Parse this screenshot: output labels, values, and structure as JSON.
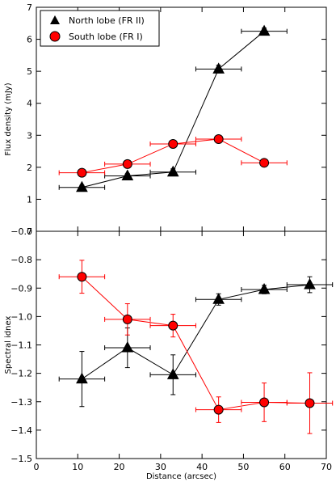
{
  "chart_data": [
    {
      "type": "scatter",
      "ylabel": "Flux density (mJy)",
      "xlim": [
        0,
        70
      ],
      "ylim": [
        0,
        7
      ],
      "yticks": [
        "0",
        "1",
        "2",
        "3",
        "4",
        "5",
        "6",
        "7"
      ],
      "grid": false,
      "legend": "top-left",
      "series": [
        {
          "name": "North lobe (FR II)",
          "marker": "triangle",
          "color": "#000000",
          "x": [
            11,
            22,
            33,
            44,
            55
          ],
          "y": [
            1.37,
            1.73,
            1.85,
            5.07,
            6.25
          ],
          "xerr": [
            5.5,
            5.5,
            5.5,
            5.5,
            5.5
          ],
          "yerr": [
            0.07,
            0.07,
            0.1,
            0.12,
            0.1
          ]
        },
        {
          "name": "South lobe (FR I)",
          "marker": "circle",
          "color": "#ff0000",
          "x": [
            11,
            22,
            33,
            44,
            55
          ],
          "y": [
            1.83,
            2.1,
            2.73,
            2.88,
            2.14
          ],
          "xerr": [
            5.5,
            5.5,
            5.5,
            5.5,
            5.5
          ],
          "yerr": [
            0.05,
            0.05,
            0.05,
            0.05,
            0.05
          ]
        }
      ]
    },
    {
      "type": "scatter",
      "xlabel": "Distance (arcsec)",
      "ylabel": "Spectral idnex",
      "xlim": [
        0,
        70
      ],
      "ylim": [
        -1.5,
        -0.7
      ],
      "xticks": [
        "0",
        "10",
        "20",
        "30",
        "40",
        "50",
        "60",
        "70"
      ],
      "yticks": [
        "−1.5",
        "−1.4",
        "−1.3",
        "−1.2",
        "−1.1",
        "−1.0",
        "−0.9",
        "−0.8",
        "−0.7"
      ],
      "grid": false,
      "series": [
        {
          "name": "North lobe (FR II)",
          "marker": "triangle",
          "color": "#000000",
          "x": [
            11,
            22,
            33,
            44,
            55,
            66
          ],
          "y": [
            -1.22,
            -1.11,
            -1.205,
            -0.94,
            -0.905,
            -0.888
          ],
          "xerr": [
            5.5,
            5.5,
            5.5,
            5.5,
            5.5,
            5.5
          ],
          "yerr": [
            0.097,
            0.07,
            0.07,
            0.02,
            0.015,
            0.028
          ]
        },
        {
          "name": "South lobe (FR I)",
          "marker": "circle",
          "color": "#ff0000",
          "x": [
            11,
            22,
            33,
            44,
            55,
            66
          ],
          "y": [
            -0.86,
            -1.01,
            -1.032,
            -1.328,
            -1.302,
            -1.305
          ],
          "xerr": [
            5.5,
            5.5,
            5.5,
            5.5,
            5.5,
            5.5
          ],
          "yerr": [
            0.058,
            0.055,
            0.04,
            0.045,
            0.068,
            0.107
          ]
        }
      ]
    }
  ]
}
